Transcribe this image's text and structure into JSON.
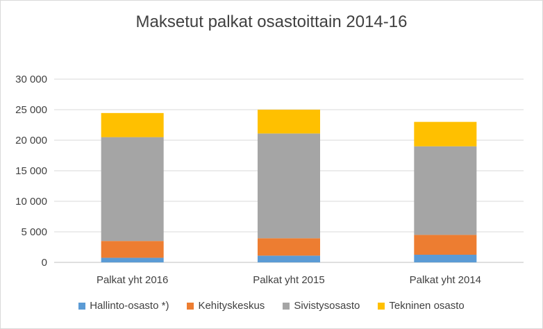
{
  "chart_data": {
    "type": "bar",
    "stacked": true,
    "title": "Maksetut palkat osastoittain 2014-16",
    "xlabel": "",
    "ylabel": "",
    "categories": [
      "Palkat yht 2016",
      "Palkat yht 2015",
      "Palkat yht 2014"
    ],
    "ylim": [
      0,
      30000
    ],
    "yticks": [
      0,
      5000,
      10000,
      15000,
      20000,
      25000,
      30000
    ],
    "ytick_labels": [
      "0",
      "5 000",
      "10 000",
      "15 000",
      "20 000",
      "25 000",
      "30 000"
    ],
    "grid": true,
    "legend_position": "bottom",
    "series": [
      {
        "name": "Hallinto-osasto *)",
        "color": "#5b9bd5",
        "values": [
          750,
          1100,
          1250
        ]
      },
      {
        "name": "Kehityskeskus",
        "color": "#ed7d31",
        "values": [
          2750,
          2850,
          3250
        ]
      },
      {
        "name": "Sivistysosasto",
        "color": "#a5a5a5",
        "values": [
          17000,
          17150,
          14500
        ]
      },
      {
        "name": "Tekninen osasto",
        "color": "#ffc000",
        "values": [
          3950,
          3900,
          4000
        ]
      }
    ]
  }
}
